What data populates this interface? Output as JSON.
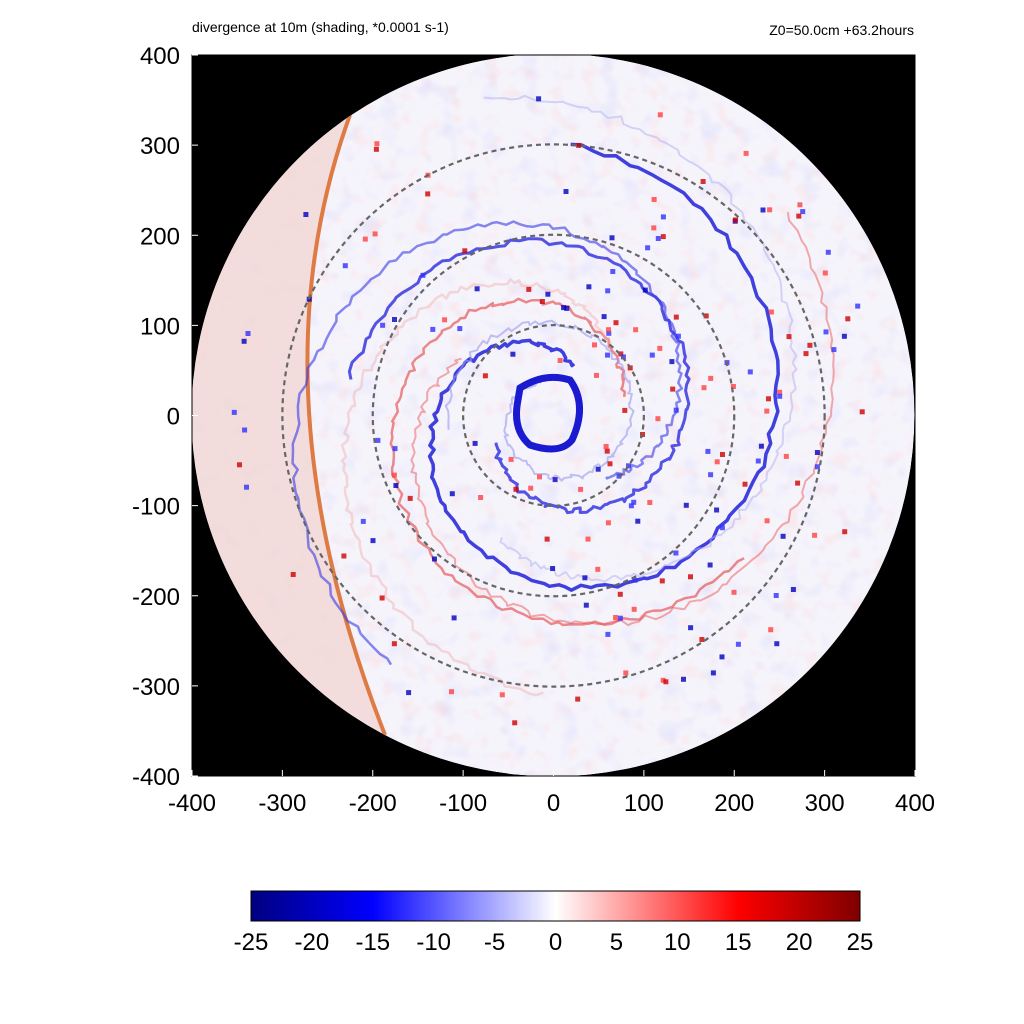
{
  "title": "divergence at 10m (shading, *0.0001 s-1)",
  "subtitle": "Z0=50.0cm  +63.2hours",
  "chart_data": {
    "type": "heatmap",
    "title": "divergence at 10m (shading, *0.0001 s-1)",
    "subtitle": "Z0=50.0cm  +63.2hours",
    "xlim": [
      -400,
      400
    ],
    "ylim": [
      -400,
      400
    ],
    "xticks": [
      -400,
      -300,
      -200,
      -100,
      0,
      100,
      200,
      300,
      400
    ],
    "yticks": [
      -400,
      -300,
      -200,
      -100,
      0,
      100,
      200,
      300,
      400
    ],
    "domain_radius": 400,
    "reference_circles": [
      100,
      200,
      300
    ],
    "reference_circle_style": "dashed gray",
    "outside_domain_color": "#000000",
    "colorbar": {
      "min": -25,
      "max": 25,
      "ticks": [
        -25,
        -20,
        -15,
        -10,
        -5,
        0,
        5,
        10,
        15,
        20,
        25
      ],
      "colors": [
        "#00007f",
        "#0000ff",
        "#ffffff",
        "#ff0000",
        "#7f0000"
      ]
    },
    "features": {
      "eyewall_convergence": "ring of strong negative divergence around the center (radius ~30-50)",
      "spiral_bands": "alternating positive/negative bands spiralling outward",
      "western_boundary_front": "sharp positive line along the western edge near x=-300 to -200"
    }
  }
}
